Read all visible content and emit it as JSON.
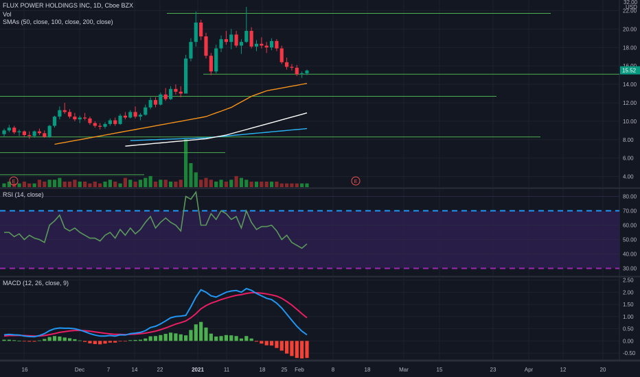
{
  "header": {
    "symbol_line": "FLUX POWER HOLDINGS INC, 1D, Cboe BZX",
    "vol_label": "Vol",
    "sma_label": "SMAs (50, close, 100, close, 200, close)",
    "currency": "USD",
    "last_price": "15.52"
  },
  "colors": {
    "background": "#131722",
    "up": "#26a69a",
    "down": "#ef5350",
    "candle_up": "#089981",
    "candle_down": "#f23645",
    "sma50": "#f7931a",
    "sma100": "#ffffff",
    "sma200": "#29b6f6",
    "hline": "#4caf50",
    "rsi": "#5b9a5b",
    "rsi_band": "#2a1e4a",
    "rsi_upper": "#2196f3",
    "rsi_lower": "#9c27b0",
    "macd": "#2196f3",
    "signal": "#e91e63",
    "hist_pos": "#4caf50",
    "hist_neg": "#f44336"
  },
  "price_axis_ticks": [
    "22.00",
    "20.00",
    "18.00",
    "16.00",
    "14.00",
    "12.00",
    "10.00",
    "8.00",
    "6.00",
    "4.00"
  ],
  "price_axis_top": "32.00",
  "rsi_axis_ticks": [
    "80.00",
    "70.00",
    "60.00",
    "50.00",
    "40.00",
    "30.00"
  ],
  "macd_axis_ticks": [
    "2.50",
    "2.00",
    "1.50",
    "1.00",
    "0.50",
    "0.00",
    "-0.50"
  ],
  "time_axis_labels": [
    "16",
    "Dec",
    "7",
    "14",
    "22",
    "2021",
    "11",
    "18",
    "25",
    "Feb",
    "8",
    "18",
    "Mar",
    "15",
    "23",
    "Apr",
    "12",
    "20"
  ],
  "earnings_markers": [
    "E",
    "E"
  ],
  "panels": {
    "rsi_label": "RSI (14, close)",
    "macd_label": "MACD (12, 26, close, 9)"
  },
  "chart_data": [
    {
      "type": "candlestick",
      "title": "FLUX POWER HOLDINGS INC, 1D, Cboe BZX",
      "ylabel": "USD",
      "ylim": [
        3.0,
        23.0
      ],
      "candles": [
        {
          "o": 8.6,
          "h": 9.2,
          "l": 8.3,
          "c": 9.0
        },
        {
          "o": 9.0,
          "h": 9.6,
          "l": 8.8,
          "c": 9.3
        },
        {
          "o": 9.3,
          "h": 9.5,
          "l": 8.6,
          "c": 8.8
        },
        {
          "o": 8.8,
          "h": 9.1,
          "l": 8.4,
          "c": 8.9
        },
        {
          "o": 8.9,
          "h": 9.0,
          "l": 8.3,
          "c": 8.5
        },
        {
          "o": 8.5,
          "h": 8.9,
          "l": 8.1,
          "c": 8.4
        },
        {
          "o": 8.4,
          "h": 9.0,
          "l": 8.2,
          "c": 8.9
        },
        {
          "o": 8.9,
          "h": 9.2,
          "l": 8.5,
          "c": 8.7
        },
        {
          "o": 8.7,
          "h": 9.0,
          "l": 8.2,
          "c": 8.3
        },
        {
          "o": 8.3,
          "h": 9.6,
          "l": 8.2,
          "c": 9.5
        },
        {
          "o": 9.5,
          "h": 10.6,
          "l": 9.3,
          "c": 10.5
        },
        {
          "o": 10.5,
          "h": 11.6,
          "l": 10.2,
          "c": 11.2
        },
        {
          "o": 11.2,
          "h": 12.0,
          "l": 10.8,
          "c": 11.0
        },
        {
          "o": 11.0,
          "h": 11.3,
          "l": 10.3,
          "c": 10.5
        },
        {
          "o": 10.5,
          "h": 10.9,
          "l": 10.0,
          "c": 10.2
        },
        {
          "o": 10.2,
          "h": 10.6,
          "l": 9.8,
          "c": 10.4
        },
        {
          "o": 10.4,
          "h": 10.9,
          "l": 10.1,
          "c": 10.3
        },
        {
          "o": 10.3,
          "h": 10.5,
          "l": 9.6,
          "c": 9.8
        },
        {
          "o": 9.8,
          "h": 10.0,
          "l": 9.3,
          "c": 9.5
        },
        {
          "o": 9.5,
          "h": 9.8,
          "l": 9.1,
          "c": 9.4
        },
        {
          "o": 9.4,
          "h": 9.9,
          "l": 9.2,
          "c": 9.7
        },
        {
          "o": 9.7,
          "h": 10.3,
          "l": 9.5,
          "c": 10.1
        },
        {
          "o": 10.1,
          "h": 10.4,
          "l": 9.5,
          "c": 9.7
        },
        {
          "o": 9.7,
          "h": 10.8,
          "l": 9.6,
          "c": 10.6
        },
        {
          "o": 10.6,
          "h": 11.0,
          "l": 10.2,
          "c": 10.4
        },
        {
          "o": 10.4,
          "h": 11.2,
          "l": 10.3,
          "c": 11.0
        },
        {
          "o": 11.0,
          "h": 11.6,
          "l": 10.3,
          "c": 10.5
        },
        {
          "o": 10.5,
          "h": 10.9,
          "l": 10.1,
          "c": 10.7
        },
        {
          "o": 10.7,
          "h": 11.8,
          "l": 10.6,
          "c": 11.5
        },
        {
          "o": 11.5,
          "h": 12.6,
          "l": 11.3,
          "c": 12.3
        },
        {
          "o": 12.3,
          "h": 12.6,
          "l": 11.5,
          "c": 11.8
        },
        {
          "o": 11.8,
          "h": 13.1,
          "l": 11.7,
          "c": 12.9
        },
        {
          "o": 12.9,
          "h": 13.6,
          "l": 12.2,
          "c": 12.4
        },
        {
          "o": 12.4,
          "h": 13.8,
          "l": 12.3,
          "c": 13.5
        },
        {
          "o": 13.5,
          "h": 14.0,
          "l": 12.9,
          "c": 13.2
        },
        {
          "o": 13.2,
          "h": 13.8,
          "l": 12.6,
          "c": 13.0
        },
        {
          "o": 13.0,
          "h": 17.2,
          "l": 13.1,
          "c": 16.8
        },
        {
          "o": 16.8,
          "h": 19.0,
          "l": 16.5,
          "c": 18.6
        },
        {
          "o": 18.6,
          "h": 21.9,
          "l": 18.1,
          "c": 20.7
        },
        {
          "o": 20.7,
          "h": 21.0,
          "l": 18.8,
          "c": 19.2
        },
        {
          "o": 19.2,
          "h": 19.6,
          "l": 16.8,
          "c": 17.1
        },
        {
          "o": 17.1,
          "h": 17.4,
          "l": 15.0,
          "c": 15.4
        },
        {
          "o": 15.4,
          "h": 18.3,
          "l": 15.2,
          "c": 17.9
        },
        {
          "o": 17.9,
          "h": 19.3,
          "l": 17.5,
          "c": 18.9
        },
        {
          "o": 18.9,
          "h": 19.8,
          "l": 18.3,
          "c": 18.6
        },
        {
          "o": 18.6,
          "h": 20.0,
          "l": 17.8,
          "c": 19.4
        },
        {
          "o": 19.4,
          "h": 19.8,
          "l": 18.0,
          "c": 18.2
        },
        {
          "o": 18.2,
          "h": 18.9,
          "l": 17.3,
          "c": 18.6
        },
        {
          "o": 18.6,
          "h": 22.4,
          "l": 18.5,
          "c": 19.8
        },
        {
          "o": 19.8,
          "h": 20.2,
          "l": 17.9,
          "c": 18.1
        },
        {
          "o": 18.1,
          "h": 18.8,
          "l": 17.6,
          "c": 18.4
        },
        {
          "o": 18.4,
          "h": 19.1,
          "l": 17.9,
          "c": 18.2
        },
        {
          "o": 18.2,
          "h": 18.6,
          "l": 17.4,
          "c": 18.0
        },
        {
          "o": 18.0,
          "h": 19.0,
          "l": 17.7,
          "c": 18.7
        },
        {
          "o": 18.7,
          "h": 18.9,
          "l": 17.6,
          "c": 17.9
        },
        {
          "o": 17.9,
          "h": 18.2,
          "l": 16.2,
          "c": 16.4
        },
        {
          "o": 16.4,
          "h": 16.9,
          "l": 15.6,
          "c": 15.9
        },
        {
          "o": 15.9,
          "h": 16.2,
          "l": 15.5,
          "c": 15.8
        },
        {
          "o": 15.8,
          "h": 16.1,
          "l": 14.9,
          "c": 15.1
        },
        {
          "o": 15.1,
          "h": 15.4,
          "l": 14.7,
          "c": 15.2
        },
        {
          "o": 15.2,
          "h": 15.6,
          "l": 15.0,
          "c": 15.5
        }
      ],
      "sma50": [
        7.5,
        7.6,
        7.7,
        7.8,
        7.9,
        8.0,
        8.1,
        8.2,
        8.3,
        8.4,
        8.5,
        8.6,
        8.7,
        8.8,
        8.9,
        9.0,
        9.1,
        9.2,
        9.3,
        9.4,
        9.5,
        9.6,
        9.7,
        9.8,
        9.9,
        10.0,
        10.1,
        10.2,
        10.3,
        10.4,
        10.5,
        10.7,
        10.9,
        11.1,
        11.3,
        11.5,
        11.8,
        12.1,
        12.4,
        12.7,
        12.9,
        13.1,
        13.3,
        13.4,
        13.5,
        13.6,
        13.7,
        13.8,
        13.9,
        14.0,
        14.1
      ],
      "sma100": [
        7.3,
        7.35,
        7.4,
        7.45,
        7.5,
        7.55,
        7.6,
        7.65,
        7.7,
        7.75,
        7.8,
        7.85,
        7.9,
        7.95,
        8.0,
        8.05,
        8.1,
        8.2,
        8.3,
        8.4,
        8.5,
        8.65,
        8.8,
        8.95,
        9.1,
        9.25,
        9.4,
        9.55,
        9.7,
        9.85,
        10.0,
        10.15,
        10.3,
        10.45,
        10.6,
        10.75,
        10.9
      ],
      "sma200": [
        7.9,
        7.92,
        7.94,
        7.96,
        7.98,
        8.0,
        8.02,
        8.04,
        8.06,
        8.08,
        8.1,
        8.12,
        8.14,
        8.16,
        8.18,
        8.2,
        8.25,
        8.3,
        8.35,
        8.4,
        8.45,
        8.5,
        8.55,
        8.6,
        8.65,
        8.7,
        8.75,
        8.8,
        8.85,
        8.9,
        8.95,
        9.0,
        9.05,
        9.1,
        9.15,
        9.2
      ],
      "horizontal_levels": [
        21.7,
        15.1,
        12.7,
        8.3,
        6.6,
        4.2
      ],
      "volume": [
        2,
        3,
        2,
        2,
        3,
        2,
        2,
        4,
        3,
        4,
        4,
        5,
        3,
        3,
        4,
        3,
        3,
        2,
        3,
        2,
        3,
        4,
        3,
        2,
        5,
        4,
        3,
        4,
        5,
        6,
        3,
        4,
        4,
        3,
        3,
        4,
        26,
        13,
        8,
        4,
        5,
        4,
        3,
        4,
        3,
        4,
        6,
        5,
        4,
        3,
        3,
        3,
        3,
        3,
        3,
        2,
        2,
        2,
        2,
        2,
        2
      ]
    },
    {
      "type": "line",
      "title": "RSI (14, close)",
      "ylim": [
        25,
        85
      ],
      "levels": [
        70,
        30
      ],
      "values": [
        55,
        55,
        52,
        54,
        50,
        53,
        51,
        50,
        48,
        60,
        63,
        67,
        58,
        56,
        58,
        55,
        53,
        51,
        51,
        49,
        53,
        55,
        51,
        57,
        53,
        58,
        54,
        57,
        62,
        66,
        58,
        62,
        65,
        62,
        60,
        56,
        80,
        78,
        83,
        60,
        60,
        68,
        64,
        70,
        68,
        64,
        66,
        58,
        70,
        62,
        57,
        59,
        59,
        60,
        56,
        50,
        53,
        48,
        46,
        44,
        47
      ]
    },
    {
      "type": "line",
      "title": "MACD (12, 26, close, 9)",
      "ylim": [
        -0.75,
        2.6
      ],
      "macd": [
        0.25,
        0.27,
        0.25,
        0.24,
        0.2,
        0.18,
        0.17,
        0.22,
        0.3,
        0.42,
        0.5,
        0.53,
        0.52,
        0.52,
        0.5,
        0.45,
        0.38,
        0.3,
        0.24,
        0.2,
        0.2,
        0.22,
        0.2,
        0.25,
        0.24,
        0.3,
        0.32,
        0.35,
        0.42,
        0.55,
        0.6,
        0.7,
        0.82,
        0.95,
        1.0,
        1.02,
        1.05,
        1.4,
        1.8,
        2.1,
        2.0,
        1.85,
        1.8,
        1.9,
        2.0,
        2.05,
        2.07,
        2.0,
        2.15,
        2.08,
        1.95,
        1.85,
        1.75,
        1.7,
        1.55,
        1.35,
        1.1,
        0.85,
        0.6,
        0.4,
        0.25
      ],
      "signal": [
        0.2,
        0.22,
        0.22,
        0.23,
        0.22,
        0.21,
        0.2,
        0.2,
        0.22,
        0.26,
        0.3,
        0.35,
        0.38,
        0.41,
        0.43,
        0.43,
        0.42,
        0.4,
        0.37,
        0.34,
        0.31,
        0.29,
        0.27,
        0.27,
        0.26,
        0.27,
        0.28,
        0.3,
        0.32,
        0.36,
        0.4,
        0.46,
        0.53,
        0.61,
        0.69,
        0.75,
        0.82,
        0.95,
        1.12,
        1.32,
        1.45,
        1.55,
        1.62,
        1.7,
        1.76,
        1.82,
        1.87,
        1.9,
        1.95,
        1.98,
        1.98,
        1.96,
        1.93,
        1.89,
        1.84,
        1.75,
        1.62,
        1.47,
        1.3,
        1.12,
        0.95
      ],
      "histogram": [
        0.05,
        0.05,
        0.03,
        0.01,
        -0.02,
        -0.03,
        -0.03,
        0.02,
        0.08,
        0.16,
        0.2,
        0.18,
        0.14,
        0.11,
        0.07,
        0.02,
        -0.04,
        -0.1,
        -0.13,
        -0.14,
        -0.11,
        -0.07,
        -0.07,
        -0.02,
        -0.02,
        0.03,
        0.04,
        0.05,
        0.1,
        0.19,
        0.2,
        0.24,
        0.29,
        0.34,
        0.31,
        0.27,
        0.23,
        0.45,
        0.68,
        0.78,
        0.55,
        0.3,
        0.18,
        0.2,
        0.24,
        0.23,
        0.2,
        0.1,
        0.2,
        0.1,
        -0.03,
        -0.11,
        -0.18,
        -0.19,
        -0.29,
        -0.4,
        -0.52,
        -0.62,
        -0.7,
        -0.72,
        -0.7
      ]
    }
  ]
}
